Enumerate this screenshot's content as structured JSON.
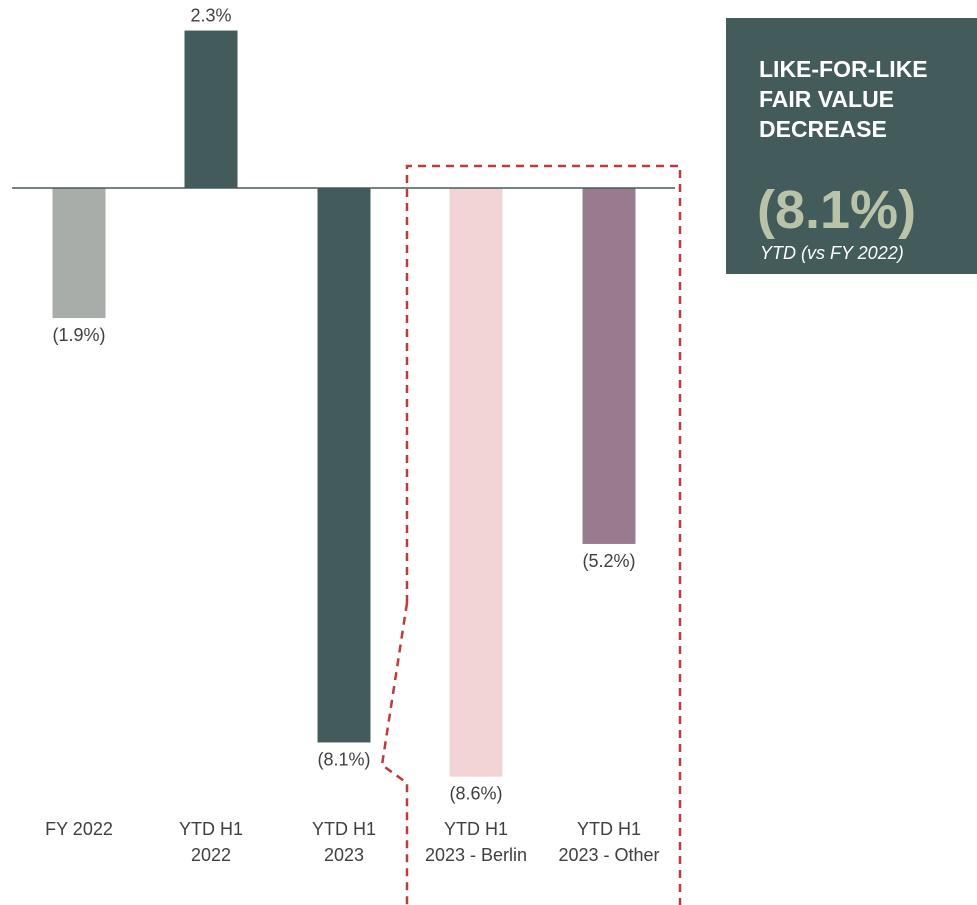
{
  "chart_data": {
    "type": "bar",
    "categories": [
      [
        "FY 2022"
      ],
      [
        "YTD H1",
        "2022"
      ],
      [
        "YTD H1",
        "2023"
      ],
      [
        "YTD H1",
        "2023 - Berlin"
      ],
      [
        "YTD H1",
        "2023 - Other"
      ]
    ],
    "values": [
      -1.9,
      2.3,
      -8.1,
      -8.6,
      -5.2
    ],
    "value_labels": [
      "(1.9%)",
      "2.3%",
      "(8.1%)",
      "(8.6%)",
      "(5.2%)"
    ],
    "colors": [
      "#a9ada9",
      "#435b5b",
      "#435b5b",
      "#f2d4d6",
      "#9a7b8e"
    ],
    "ylim": [
      -9.0,
      2.3
    ],
    "highlight": {
      "categories": [
        3,
        4
      ],
      "source": 2,
      "style": "dashed",
      "color": "#c0393b"
    },
    "gridlines": false,
    "legend": "none"
  },
  "kpi": {
    "title": "LIKE-FOR-LIKE\nFAIR VALUE\nDECREASE",
    "value": "(8.1%)",
    "subtitle": "YTD (vs FY 2022)",
    "background": "#435b5b",
    "value_color": "#b9c3a7"
  }
}
